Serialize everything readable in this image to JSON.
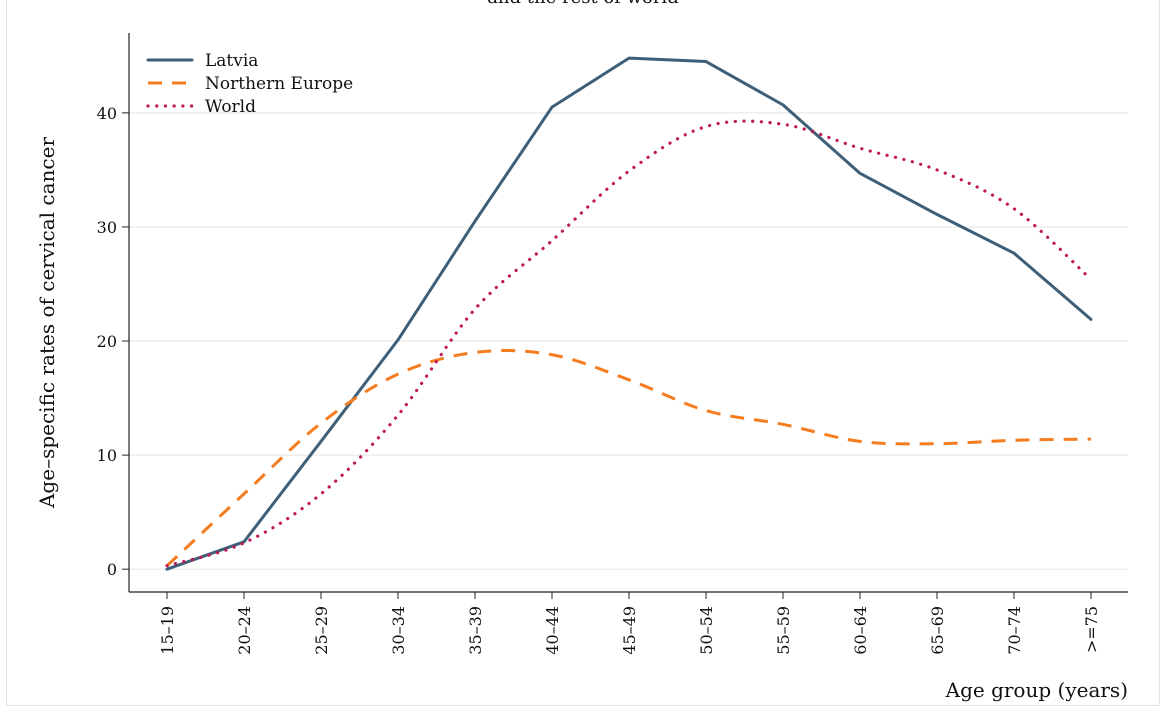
{
  "chart_data": {
    "type": "line",
    "title": "and the rest of world",
    "xlabel": "Age group (years)",
    "ylabel": "Age–specific rates of cervical cancer",
    "categories": [
      "15–19",
      "20–24",
      "25–29",
      "30–34",
      "35–39",
      "40–44",
      "45–49",
      "50–54",
      "55–59",
      "60–64",
      "65–69",
      "70–74",
      ">=75"
    ],
    "ylim": [
      -2,
      47
    ],
    "yticks": [
      "0",
      "10",
      "20",
      "30",
      "40"
    ],
    "grid": true,
    "legend_position": "top-left",
    "series": [
      {
        "name": "Latvia",
        "color": "#3e5f78",
        "style": "solid",
        "values": [
          0.0,
          2.4,
          11.2,
          20.1,
          30.5,
          40.5,
          44.8,
          44.5,
          40.7,
          34.7,
          31.1,
          27.7,
          21.9
        ]
      },
      {
        "name": "Northern Europe",
        "color": "#f57c1f",
        "style": "dashed",
        "values": [
          0.3,
          6.6,
          12.8,
          17.1,
          19.0,
          18.8,
          16.6,
          13.9,
          12.7,
          11.2,
          11.0,
          11.3,
          11.4
        ]
      },
      {
        "name": "World",
        "color": "#c0185a",
        "style": "dotted",
        "values": [
          0.3,
          2.3,
          6.6,
          13.5,
          22.8,
          28.8,
          34.9,
          38.8,
          39.0,
          36.9,
          35.0,
          31.6,
          25.4
        ]
      }
    ]
  }
}
